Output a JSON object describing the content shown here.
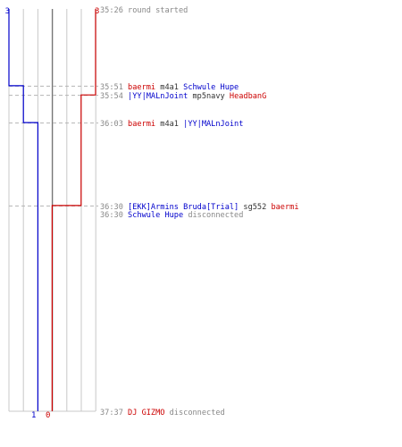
{
  "chart_data": {
    "type": "line",
    "series": [
      {
        "side": "blue",
        "color": "#0000cc",
        "start_count": "3",
        "end_count": "1",
        "steps": [
          {
            "time": "35:26",
            "value": 3
          },
          {
            "time": "35:51",
            "value": 2
          },
          {
            "time": "36:03",
            "value": 1
          },
          {
            "time": "37:37",
            "value": 1
          }
        ]
      },
      {
        "side": "red",
        "color": "#cc0000",
        "start_count": "3",
        "end_count": "0",
        "steps": [
          {
            "time": "35:26",
            "value": 3
          },
          {
            "time": "35:54",
            "value": 2
          },
          {
            "time": "36:30",
            "value": 1
          },
          {
            "time": "36:30",
            "value": 0
          },
          {
            "time": "37:37",
            "value": 0
          }
        ]
      }
    ],
    "events": [
      {
        "time": "35:26",
        "separator": false,
        "parts": [
          {
            "text": "round started",
            "color": "#888888"
          }
        ]
      },
      {
        "time": "35:51",
        "separator": true,
        "parts": [
          {
            "text": "baermi",
            "color": "#cc0000"
          },
          {
            "text": "m4a1",
            "color": "#333333"
          },
          {
            "text": "Schwule Hupe",
            "color": "#0000cc"
          }
        ]
      },
      {
        "time": "35:54",
        "separator": true,
        "parts": [
          {
            "text": "|YY|MALnJoint",
            "color": "#0000cc"
          },
          {
            "text": "mp5navy",
            "color": "#333333"
          },
          {
            "text": "HeadbanG",
            "color": "#cc0000"
          }
        ]
      },
      {
        "time": "36:03",
        "separator": true,
        "parts": [
          {
            "text": "baermi",
            "color": "#cc0000"
          },
          {
            "text": "m4a1",
            "color": "#333333"
          },
          {
            "text": "|YY|MALnJoint",
            "color": "#0000cc"
          }
        ]
      },
      {
        "time": "36:30",
        "separator": true,
        "parts": [
          {
            "text": "[EKK]Armins Bruda[Trial]",
            "color": "#0000cc"
          },
          {
            "text": "sg552",
            "color": "#333333"
          },
          {
            "text": "baermi",
            "color": "#cc0000"
          }
        ]
      },
      {
        "time": "36:30",
        "separator": false,
        "parts": [
          {
            "text": "Schwule Hupe",
            "color": "#0000cc"
          },
          {
            "text": "disconnected",
            "color": "#888888"
          }
        ]
      },
      {
        "time": "37:37",
        "separator": false,
        "parts": [
          {
            "text": "DJ GIZMO",
            "color": "#cc0000"
          },
          {
            "text": "disconnected",
            "color": "#888888"
          }
        ]
      }
    ],
    "time_range": [
      "35:26",
      "37:37"
    ],
    "value_range": [
      0,
      5
    ],
    "grid": true,
    "colors": {
      "grid": "#c8c8c8",
      "center_line": "#777777",
      "separator": "#b4b4b4",
      "time_text": "#888888"
    }
  }
}
